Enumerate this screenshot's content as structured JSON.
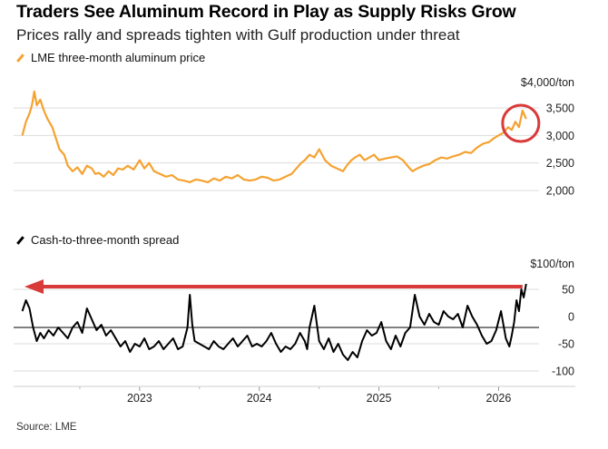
{
  "title": "Traders See Aluminum Record in Play as Supply Risks Grow",
  "subtitle": "Prices rally and spreads tighten with Gulf production under threat",
  "source": "Source: LME",
  "colors": {
    "price_line": "#f5a230",
    "spread_line": "#000000",
    "highlight": "#d93a3a",
    "gridline": "#dddddd",
    "zero_line": "#000000"
  },
  "chart_data": [
    {
      "type": "line",
      "title": "LME three-month aluminum price",
      "unit_label": "$4,000/ton",
      "ylim": [
        1900,
        4000
      ],
      "yticks": [
        {
          "value": 3500,
          "label": "3,500"
        },
        {
          "value": 3000,
          "label": "3,000"
        },
        {
          "value": 2500,
          "label": "2,500"
        },
        {
          "value": 2000,
          "label": "2,000"
        }
      ],
      "xlim": [
        2022.0,
        2026.3
      ],
      "xticks": [
        {
          "value": 2023.0,
          "label": "2023"
        },
        {
          "value": 2024.0,
          "label": "2024"
        },
        {
          "value": 2025.0,
          "label": "2025"
        },
        {
          "value": 2026.0,
          "label": "2026"
        }
      ],
      "annotation": "circle highlighting latest prices",
      "x": [
        2022.02,
        2022.05,
        2022.08,
        2022.1,
        2022.12,
        2022.14,
        2022.17,
        2022.2,
        2022.23,
        2022.27,
        2022.3,
        2022.33,
        2022.37,
        2022.4,
        2022.44,
        2022.48,
        2022.52,
        2022.56,
        2022.6,
        2022.63,
        2022.66,
        2022.7,
        2022.74,
        2022.78,
        2022.82,
        2022.86,
        2022.9,
        2022.95,
        2023.0,
        2023.04,
        2023.08,
        2023.12,
        2023.17,
        2023.22,
        2023.27,
        2023.32,
        2023.37,
        2023.42,
        2023.47,
        2023.52,
        2023.57,
        2023.62,
        2023.67,
        2023.72,
        2023.77,
        2023.82,
        2023.87,
        2023.92,
        2023.97,
        2024.02,
        2024.07,
        2024.12,
        2024.17,
        2024.22,
        2024.27,
        2024.31,
        2024.35,
        2024.38,
        2024.42,
        2024.46,
        2024.5,
        2024.55,
        2024.6,
        2024.65,
        2024.7,
        2024.73,
        2024.77,
        2024.8,
        2024.84,
        2024.88,
        2024.92,
        2024.96,
        2025.0,
        2025.05,
        2025.1,
        2025.15,
        2025.2,
        2025.25,
        2025.28,
        2025.32,
        2025.37,
        2025.42,
        2025.47,
        2025.52,
        2025.57,
        2025.62,
        2025.67,
        2025.72,
        2025.77,
        2025.82,
        2025.87,
        2025.92,
        2025.96,
        2026.0,
        2026.04,
        2026.08,
        2026.11,
        2026.14,
        2026.17,
        2026.2,
        2026.23
      ],
      "values": [
        3000,
        3250,
        3400,
        3550,
        3800,
        3550,
        3650,
        3450,
        3300,
        3150,
        2950,
        2750,
        2650,
        2450,
        2350,
        2420,
        2300,
        2450,
        2400,
        2300,
        2320,
        2250,
        2350,
        2280,
        2400,
        2380,
        2450,
        2380,
        2550,
        2400,
        2500,
        2350,
        2300,
        2250,
        2280,
        2200,
        2180,
        2150,
        2200,
        2180,
        2150,
        2220,
        2180,
        2250,
        2220,
        2280,
        2200,
        2180,
        2200,
        2250,
        2230,
        2180,
        2200,
        2250,
        2300,
        2400,
        2500,
        2550,
        2650,
        2600,
        2750,
        2550,
        2450,
        2400,
        2350,
        2450,
        2550,
        2600,
        2650,
        2550,
        2600,
        2650,
        2550,
        2580,
        2600,
        2620,
        2550,
        2420,
        2350,
        2400,
        2450,
        2480,
        2550,
        2600,
        2580,
        2620,
        2650,
        2700,
        2680,
        2780,
        2850,
        2880,
        2950,
        3000,
        3050,
        3150,
        3100,
        3250,
        3150,
        3450,
        3300
      ]
    },
    {
      "type": "line",
      "title": "Cash-to-three-month spread",
      "unit_label": "$100/ton",
      "ylim": [
        -110,
        65
      ],
      "yticks": [
        {
          "value": 50,
          "label": "50"
        },
        {
          "value": 0,
          "label": "0"
        },
        {
          "value": -50,
          "label": "-50"
        },
        {
          "value": -100,
          "label": "-100"
        }
      ],
      "xlim": [
        2022.0,
        2026.3
      ],
      "xticks": [
        {
          "value": 2023.0,
          "label": "2023"
        },
        {
          "value": 2024.0,
          "label": "2024"
        },
        {
          "value": 2025.0,
          "label": "2025"
        },
        {
          "value": 2026.0,
          "label": "2026"
        }
      ],
      "annotation": "arrow pointing back to 2022 levels",
      "x": [
        2022.02,
        2022.05,
        2022.08,
        2022.11,
        2022.14,
        2022.17,
        2022.2,
        2022.24,
        2022.28,
        2022.32,
        2022.36,
        2022.4,
        2022.44,
        2022.48,
        2022.52,
        2022.56,
        2022.6,
        2022.64,
        2022.68,
        2022.72,
        2022.76,
        2022.8,
        2022.84,
        2022.88,
        2022.92,
        2022.96,
        2023.0,
        2023.04,
        2023.08,
        2023.12,
        2023.16,
        2023.2,
        2023.24,
        2023.28,
        2023.32,
        2023.36,
        2023.4,
        2023.42,
        2023.44,
        2023.46,
        2023.5,
        2023.54,
        2023.58,
        2023.62,
        2023.66,
        2023.7,
        2023.74,
        2023.78,
        2023.82,
        2023.86,
        2023.9,
        2023.94,
        2023.98,
        2024.02,
        2024.06,
        2024.1,
        2024.14,
        2024.18,
        2024.22,
        2024.26,
        2024.3,
        2024.34,
        2024.38,
        2024.4,
        2024.42,
        2024.46,
        2024.5,
        2024.54,
        2024.58,
        2024.62,
        2024.66,
        2024.7,
        2024.74,
        2024.78,
        2024.82,
        2024.86,
        2024.9,
        2024.94,
        2024.98,
        2025.02,
        2025.06,
        2025.1,
        2025.14,
        2025.18,
        2025.22,
        2025.26,
        2025.3,
        2025.34,
        2025.38,
        2025.42,
        2025.46,
        2025.5,
        2025.54,
        2025.58,
        2025.62,
        2025.66,
        2025.7,
        2025.74,
        2025.78,
        2025.82,
        2025.86,
        2025.9,
        2025.94,
        2025.98,
        2026.02,
        2026.06,
        2026.09,
        2026.11,
        2026.13,
        2026.15,
        2026.17,
        2026.19,
        2026.21,
        2026.23
      ],
      "values": [
        10,
        30,
        15,
        -20,
        -45,
        -30,
        -40,
        -25,
        -35,
        -20,
        -30,
        -40,
        -20,
        -10,
        -30,
        15,
        -5,
        -25,
        -15,
        -35,
        -25,
        -40,
        -55,
        -45,
        -65,
        -50,
        -55,
        -40,
        -60,
        -55,
        -45,
        -60,
        -50,
        -40,
        -60,
        -55,
        -20,
        40,
        -15,
        -45,
        -50,
        -55,
        -60,
        -45,
        -55,
        -60,
        -50,
        -40,
        -55,
        -45,
        -35,
        -55,
        -50,
        -55,
        -45,
        -30,
        -50,
        -65,
        -55,
        -60,
        -50,
        -30,
        -45,
        -60,
        -20,
        20,
        -45,
        -60,
        -40,
        -65,
        -50,
        -70,
        -80,
        -65,
        -75,
        -45,
        -25,
        -35,
        -30,
        -10,
        -45,
        -60,
        -35,
        -55,
        -30,
        -20,
        40,
        0,
        -15,
        5,
        -10,
        -15,
        10,
        0,
        -5,
        5,
        -20,
        20,
        0,
        -15,
        -35,
        -50,
        -45,
        -25,
        10,
        -40,
        -55,
        -35,
        -10,
        30,
        10,
        50,
        35,
        60
      ]
    }
  ]
}
